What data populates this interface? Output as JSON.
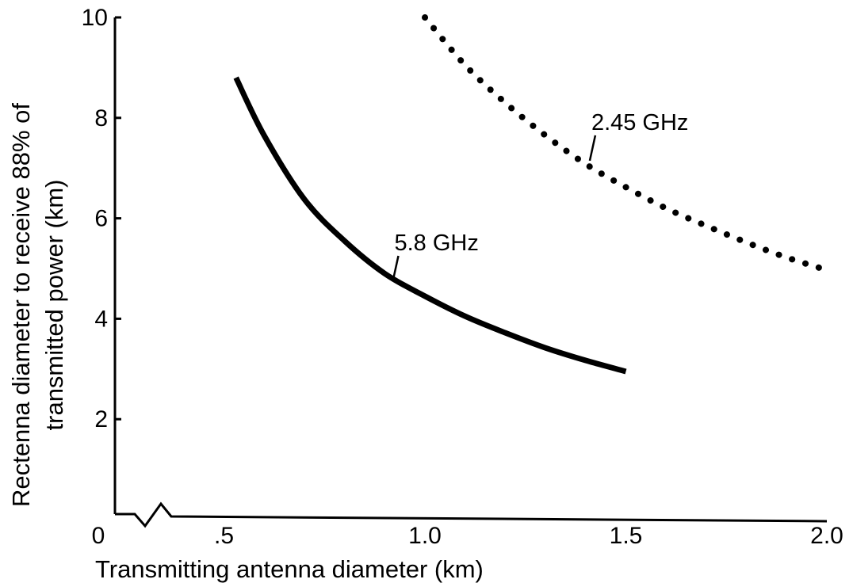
{
  "chart_data": {
    "type": "line",
    "title": "",
    "xlabel": "Transmitting antenna diameter (km)",
    "ylabel_lines": [
      "Rectenna diameter to receive 88% of",
      "transmitted power (km)"
    ],
    "x_ticks": [
      {
        "value": 0,
        "label": "0"
      },
      {
        "value": 0.5,
        "label": ".5"
      },
      {
        "value": 1.0,
        "label": "1.0"
      },
      {
        "value": 1.5,
        "label": "1.5"
      },
      {
        "value": 2.0,
        "label": "2.0"
      }
    ],
    "y_ticks": [
      {
        "value": 2,
        "label": "2"
      },
      {
        "value": 4,
        "label": "4"
      },
      {
        "value": 6,
        "label": "6"
      },
      {
        "value": 8,
        "label": "8"
      },
      {
        "value": 10,
        "label": "10"
      }
    ],
    "xlim": [
      0,
      2.0
    ],
    "ylim": [
      0,
      10
    ],
    "axis_break": "x",
    "grid": false,
    "legend": "none",
    "series": [
      {
        "name": "5.8 GHz",
        "style": "solid",
        "color": "#000000",
        "x": [
          0.53,
          0.6,
          0.7,
          0.8,
          0.9,
          1.0,
          1.1,
          1.2,
          1.3,
          1.4,
          1.5
        ],
        "y": [
          8.8,
          7.65,
          6.38,
          5.55,
          4.9,
          4.45,
          4.05,
          3.72,
          3.42,
          3.17,
          2.95
        ]
      },
      {
        "name": "2.45 GHz",
        "style": "dotted",
        "color": "#000000",
        "x": [
          1.0,
          1.1,
          1.2,
          1.3,
          1.4,
          1.5,
          1.6,
          1.7,
          1.8,
          1.9,
          2.0
        ],
        "y": [
          10.0,
          9.05,
          8.3,
          7.65,
          7.08,
          6.62,
          6.2,
          5.85,
          5.52,
          5.22,
          4.97
        ]
      }
    ],
    "annotations": [
      {
        "series": "5.8 GHz",
        "text": "5.8 GHz",
        "x": 0.93,
        "y": 4.7
      },
      {
        "series": "2.45 GHz",
        "text": "2.45 GHz",
        "x": 1.42,
        "y": 7.1
      }
    ]
  }
}
